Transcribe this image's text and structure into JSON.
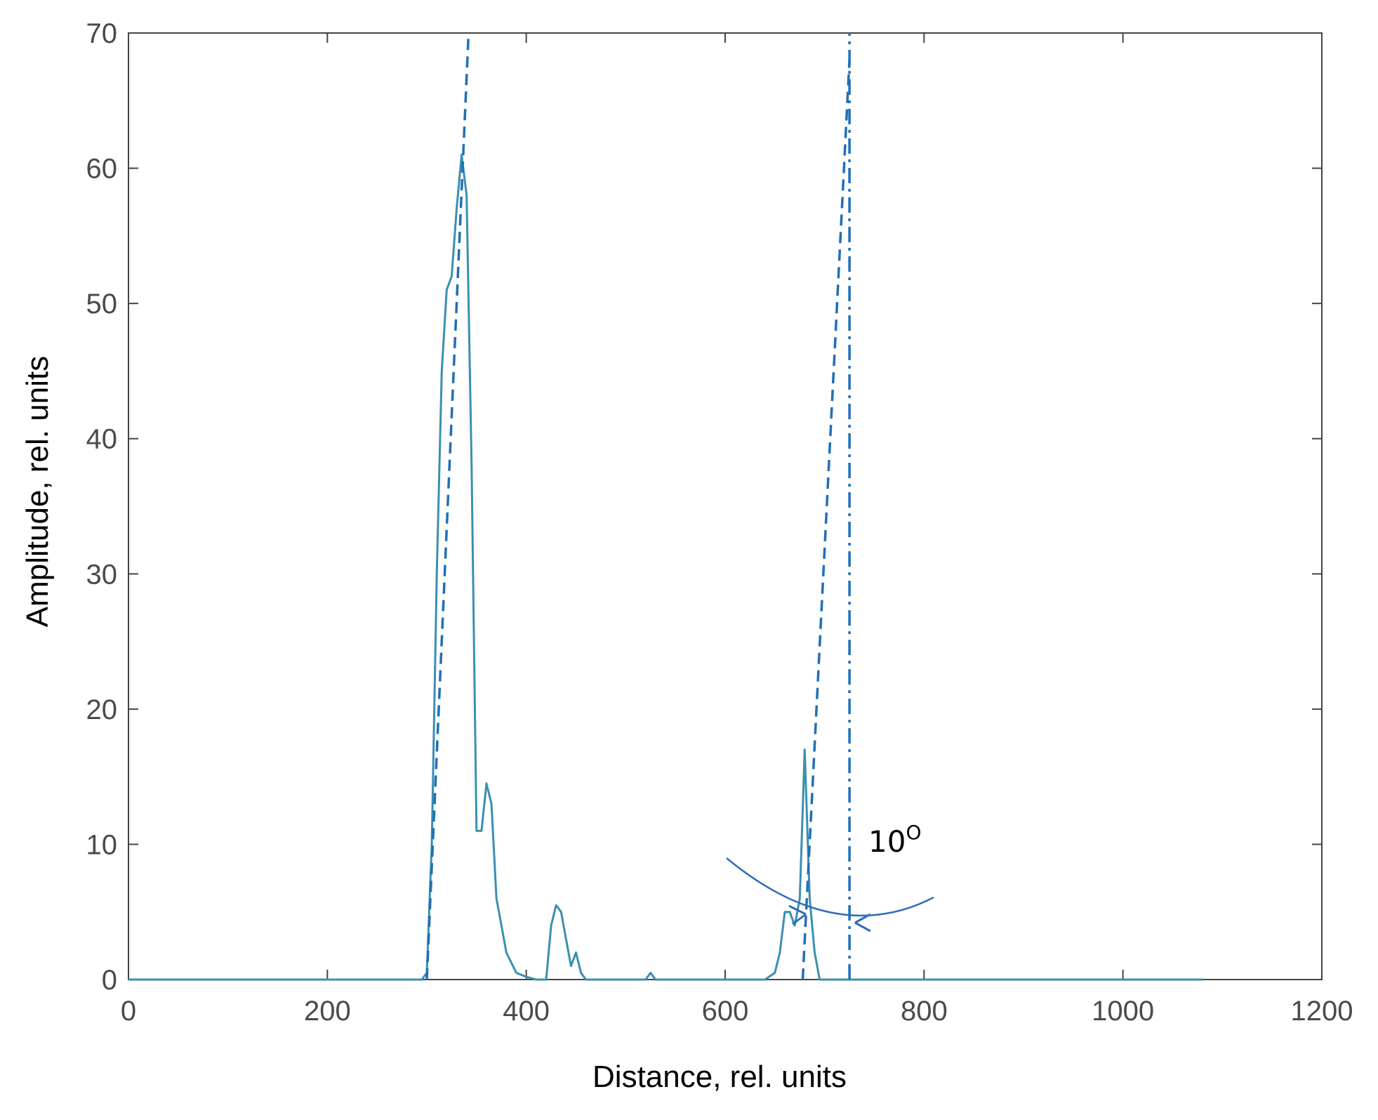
{
  "chart_data": {
    "type": "line",
    "title": "",
    "xlabel": "Distance, rel. units",
    "ylabel": "Amplitude, rel. units",
    "xlim": [
      0,
      1200
    ],
    "ylim": [
      0,
      70
    ],
    "xticks": [
      0,
      200,
      400,
      600,
      800,
      1000,
      1200
    ],
    "yticks": [
      0,
      10,
      20,
      30,
      40,
      50,
      60,
      70
    ],
    "grid": false,
    "series": [
      {
        "style": "solid",
        "color": "#3a8fb0",
        "x": [
          0,
          295,
          300,
          305,
          310,
          315,
          320,
          325,
          330,
          335,
          340,
          345,
          350,
          355,
          360,
          365,
          370,
          375,
          380,
          390,
          400,
          410,
          420,
          425,
          430,
          435,
          440,
          445,
          450,
          455,
          460,
          470,
          480,
          500,
          520,
          525,
          530,
          540,
          560,
          600,
          640,
          650,
          655,
          660,
          665,
          670,
          675,
          680,
          685,
          690,
          695,
          700,
          710,
          760,
          1080
        ],
        "y": [
          0,
          0,
          0.5,
          10,
          30,
          45,
          51,
          52,
          57,
          61,
          58,
          38,
          11,
          11,
          14.5,
          13,
          6,
          4,
          2,
          0.5,
          0.2,
          0,
          0,
          4,
          5.5,
          5,
          3,
          1,
          2,
          0.5,
          0,
          0,
          0,
          0,
          0,
          0.5,
          0,
          0,
          0,
          0,
          0,
          0.5,
          2,
          5,
          5,
          4,
          6,
          17,
          6,
          2,
          0,
          0,
          0,
          0,
          0
        ]
      },
      {
        "style": "dashed",
        "color": "#1f6fb8",
        "x": [
          300,
          342
        ],
        "y": [
          0,
          72
        ]
      },
      {
        "style": "dashed",
        "color": "#1f6fb8",
        "x": [
          678,
          725
        ],
        "y": [
          0,
          68
        ]
      },
      {
        "style": "dash-dot",
        "color": "#1f6fb8",
        "x": [
          725,
          725
        ],
        "y": [
          0,
          70
        ]
      }
    ],
    "annotations": [
      {
        "text": "10",
        "superscript": "O",
        "x": 745,
        "y": 9.5
      }
    ]
  }
}
